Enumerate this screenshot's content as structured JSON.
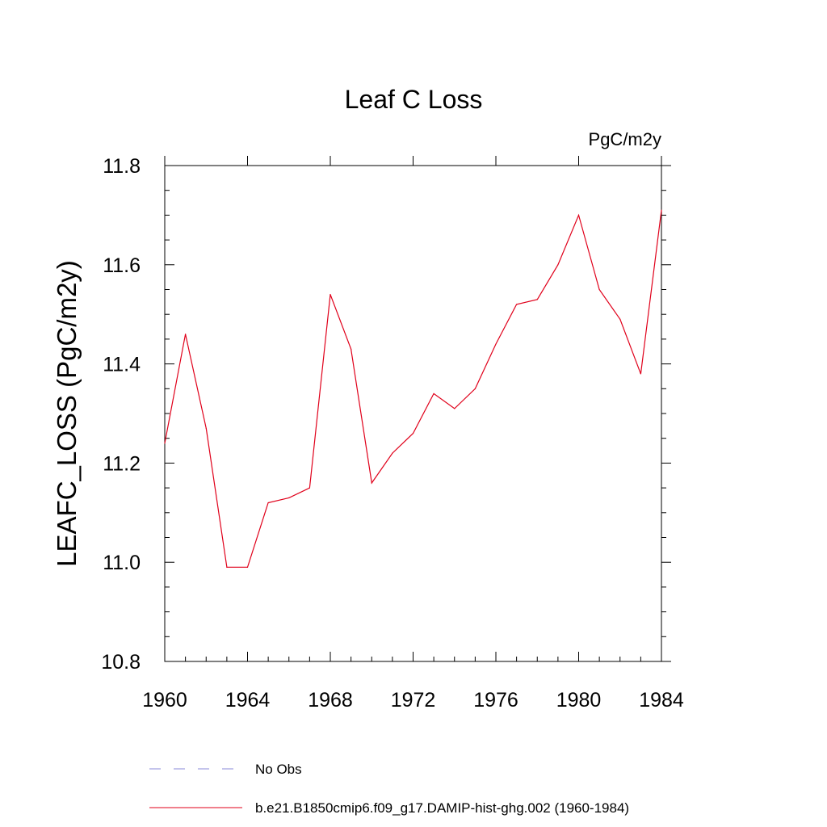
{
  "chart_data": {
    "type": "line",
    "title": "Leaf C Loss",
    "units_label": "PgC/m2y",
    "xlabel": "",
    "ylabel": "LEAFC_LOSS  (PgC/m2y)",
    "xlim": [
      1960,
      1984
    ],
    "ylim": [
      10.8,
      11.8
    ],
    "x_ticks": [
      "1960",
      "1964",
      "1968",
      "1972",
      "1976",
      "1980",
      "1984"
    ],
    "y_ticks": [
      "10.8",
      "11.0",
      "11.2",
      "11.4",
      "11.6",
      "11.8"
    ],
    "grid": false,
    "legend_position": "bottom",
    "series": [
      {
        "name": "No Obs",
        "color": "#8a8ad8",
        "style": "dashed",
        "x": [],
        "y": []
      },
      {
        "name": "b.e21.B1850cmip6.f09_g17.DAMIP-hist-ghg.002 (1960-1984)",
        "color": "#e0001a",
        "style": "solid",
        "x": [
          1960,
          1961,
          1962,
          1963,
          1964,
          1965,
          1966,
          1967,
          1968,
          1969,
          1970,
          1971,
          1972,
          1973,
          1974,
          1975,
          1976,
          1977,
          1978,
          1979,
          1980,
          1981,
          1982,
          1983,
          1984
        ],
        "y": [
          11.24,
          11.46,
          11.27,
          10.99,
          10.99,
          11.12,
          11.13,
          11.15,
          11.54,
          11.43,
          11.16,
          11.22,
          11.26,
          11.34,
          11.31,
          11.35,
          11.44,
          11.52,
          11.53,
          11.6,
          11.7,
          11.55,
          11.49,
          11.38,
          11.71
        ]
      }
    ]
  }
}
